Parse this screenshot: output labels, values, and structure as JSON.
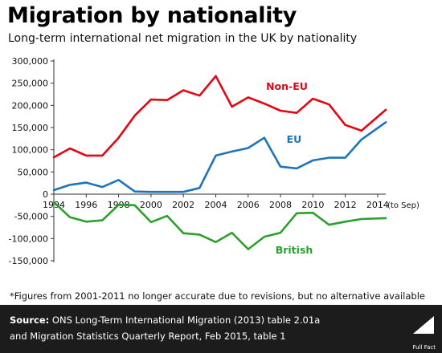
{
  "title": "Migration by nationality",
  "subtitle": "Long-term international net migration in the UK by nationality",
  "footnote": "*Figures from 2001-2011 no longer accurate due to revisions, but no alternative available",
  "footer": {
    "source_label": "Source:",
    "source_line1": "ONS Long-Term International Migration (2013) table 2.01a",
    "source_line2": "and Migration Statistics Quarterly Report, Feb 2015, table 1",
    "logo_text": "Full Fact"
  },
  "chart_data": {
    "type": "line",
    "xlabel": "",
    "ylabel": "",
    "x_range": [
      1994,
      2014.5
    ],
    "ylim": [
      -150000,
      300000
    ],
    "y_ticks": [
      300000,
      250000,
      200000,
      150000,
      100000,
      50000,
      0,
      -50000,
      -100000,
      -150000
    ],
    "y_tick_labels": [
      "300,000",
      "250,000",
      "200,000",
      "150,000",
      "100,000",
      "50,000",
      "0",
      "-50,000",
      "-100,000",
      "-150,000"
    ],
    "x_ticks": [
      1994,
      1996,
      1998,
      2000,
      2002,
      2004,
      2006,
      2008,
      2010,
      2012,
      2014
    ],
    "x_tick_labels": [
      "1994",
      "1996",
      "1998",
      "2000",
      "2002",
      "2004",
      "2006",
      "2008",
      "2010",
      "2012",
      "2014"
    ],
    "x_extra_label": "(to Sep)",
    "grid": false,
    "series": [
      {
        "name": "Non-EU",
        "color": "#e30613",
        "x": [
          1994,
          1995,
          1996,
          1997,
          1998,
          1999,
          2000,
          2001,
          2002,
          2003,
          2004,
          2005,
          2006,
          2007,
          2008,
          2009,
          2010,
          2011,
          2012,
          2013,
          2014.5
        ],
        "values": [
          83000,
          103000,
          87000,
          87000,
          127000,
          177000,
          213000,
          212000,
          234000,
          222000,
          266000,
          197000,
          218000,
          204000,
          188000,
          183000,
          215000,
          202000,
          156000,
          143000,
          190000
        ]
      },
      {
        "name": "EU",
        "color": "#1e74bb",
        "x": [
          1994,
          1995,
          1996,
          1997,
          1998,
          1999,
          2000,
          2001,
          2002,
          2003,
          2004,
          2005,
          2006,
          2007,
          2008,
          2009,
          2010,
          2011,
          2012,
          2013,
          2014.5
        ],
        "values": [
          9000,
          21000,
          26000,
          16000,
          32000,
          6000,
          5000,
          5000,
          5000,
          14000,
          87000,
          96000,
          104000,
          127000,
          62000,
          58000,
          76000,
          82000,
          82000,
          123000,
          162000
        ]
      },
      {
        "name": "British",
        "color": "#2ca02c",
        "x": [
          1994,
          1995,
          1996,
          1997,
          1998,
          1999,
          2000,
          2001,
          2002,
          2003,
          2004,
          2005,
          2006,
          2007,
          2008,
          2009,
          2010,
          2011,
          2012,
          2013,
          2014.5
        ],
        "values": [
          -18000,
          -52000,
          -62000,
          -59000,
          -24000,
          -25000,
          -63000,
          -49000,
          -88000,
          -91000,
          -108000,
          -87000,
          -124000,
          -96000,
          -87000,
          -43000,
          -42000,
          -69000,
          -62000,
          -56000,
          -54000
        ]
      }
    ],
    "series_label_positions": [
      "upper",
      "middle",
      "lower"
    ]
  }
}
